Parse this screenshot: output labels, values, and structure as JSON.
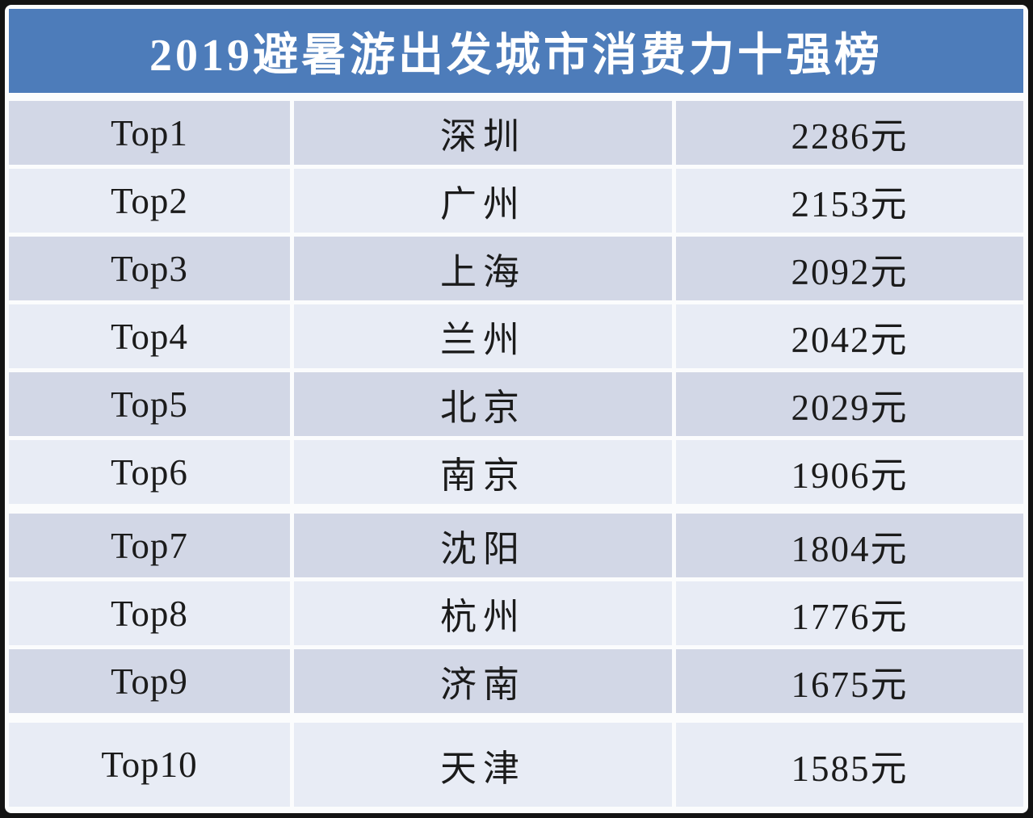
{
  "title": "2019避暑游出发城市消费力十强榜",
  "colors": {
    "frame": "#131313",
    "page_bg": "#fbfcfd",
    "header_bg": "#4d7cba",
    "title_color": "#ffffff",
    "row_dark": "#d2d7e6",
    "row_light": "#e8ecf5",
    "cell_text": "#1b1b1b"
  },
  "table": {
    "rows": [
      {
        "rank": "Top1",
        "city": "深圳",
        "value": "2286元"
      },
      {
        "rank": "Top2",
        "city": "广州",
        "value": "2153元"
      },
      {
        "rank": "Top3",
        "city": "上海",
        "value": "2092元"
      },
      {
        "rank": "Top4",
        "city": "兰州",
        "value": "2042元"
      },
      {
        "rank": "Top5",
        "city": "北京",
        "value": "2029元"
      },
      {
        "rank": "Top6",
        "city": "南京",
        "value": "1906元"
      },
      {
        "rank": "Top7",
        "city": "沈阳",
        "value": "1804元"
      },
      {
        "rank": "Top8",
        "city": "杭州",
        "value": "1776元"
      },
      {
        "rank": "Top9",
        "city": "济南",
        "value": "1675元"
      },
      {
        "rank": "Top10",
        "city": "天津",
        "value": "1585元"
      }
    ]
  },
  "chart_data": {
    "type": "table",
    "title": "2019避暑游出发城市消费力十强榜",
    "unit": "元",
    "rows": [
      {
        "rank": "Top1",
        "city": "深圳",
        "value_yuan": 2286
      },
      {
        "rank": "Top2",
        "city": "广州",
        "value_yuan": 2153
      },
      {
        "rank": "Top3",
        "city": "上海",
        "value_yuan": 2092
      },
      {
        "rank": "Top4",
        "city": "兰州",
        "value_yuan": 2042
      },
      {
        "rank": "Top5",
        "city": "北京",
        "value_yuan": 2029
      },
      {
        "rank": "Top6",
        "city": "南京",
        "value_yuan": 1906
      },
      {
        "rank": "Top7",
        "city": "沈阳",
        "value_yuan": 1804
      },
      {
        "rank": "Top8",
        "city": "杭州",
        "value_yuan": 1776
      },
      {
        "rank": "Top9",
        "city": "济南",
        "value_yuan": 1675
      },
      {
        "rank": "Top10",
        "city": "天津",
        "value_yuan": 1585
      }
    ]
  }
}
